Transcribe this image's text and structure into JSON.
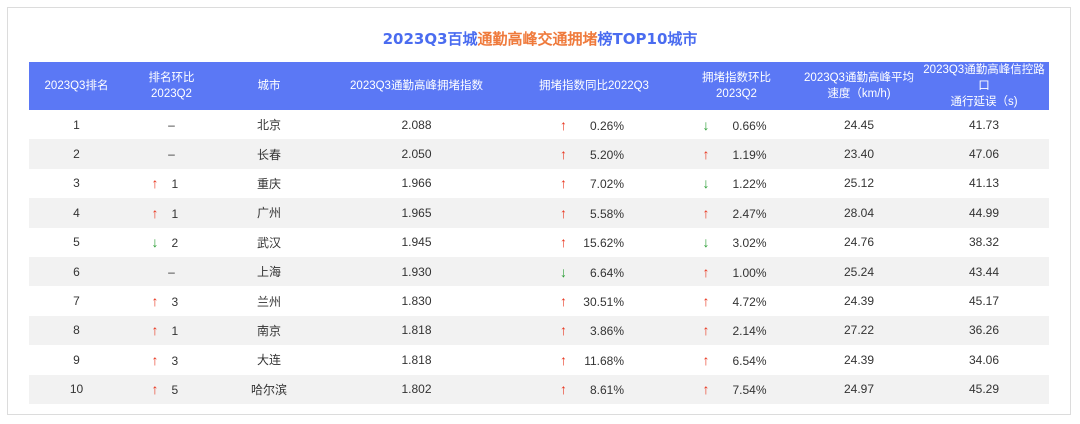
{
  "title": {
    "part1": "2023Q3百城",
    "part2": "通勤高峰交通拥堵",
    "part3": "榜TOP10城市"
  },
  "colors": {
    "header_bg": "#5b78f5",
    "title_blue": "#4a6cf0",
    "title_orange": "#ef7a3c",
    "up_arrow": "#e8341d",
    "down_arrow": "#2a9d34",
    "row_stripe": "#f2f2f2"
  },
  "chart_data": {
    "type": "table",
    "columns": [
      "2023Q3排名",
      "排名环比2023Q2",
      "城市",
      "2023Q3通勤高峰拥堵指数",
      "拥堵指数同比2022Q3",
      "拥堵指数环比2023Q2",
      "2023Q3通勤高峰平均速度（km/h)",
      "2023Q3通勤高峰信控路口通行延误（s)"
    ],
    "rows": [
      {
        "rank": "1",
        "rank_change": {
          "dir": "none",
          "text": "–"
        },
        "city": "北京",
        "index": "2.088",
        "yoy": {
          "dir": "up",
          "text": "0.26%"
        },
        "qoq": {
          "dir": "down",
          "text": "0.66%"
        },
        "speed": "24.45",
        "delay": "41.73"
      },
      {
        "rank": "2",
        "rank_change": {
          "dir": "none",
          "text": "–"
        },
        "city": "长春",
        "index": "2.050",
        "yoy": {
          "dir": "up",
          "text": "5.20%"
        },
        "qoq": {
          "dir": "up",
          "text": "1.19%"
        },
        "speed": "23.40",
        "delay": "47.06"
      },
      {
        "rank": "3",
        "rank_change": {
          "dir": "up",
          "text": "1"
        },
        "city": "重庆",
        "index": "1.966",
        "yoy": {
          "dir": "up",
          "text": "7.02%"
        },
        "qoq": {
          "dir": "down",
          "text": "1.22%"
        },
        "speed": "25.12",
        "delay": "41.13"
      },
      {
        "rank": "4",
        "rank_change": {
          "dir": "up",
          "text": "1"
        },
        "city": "广州",
        "index": "1.965",
        "yoy": {
          "dir": "up",
          "text": "5.58%"
        },
        "qoq": {
          "dir": "up",
          "text": "2.47%"
        },
        "speed": "28.04",
        "delay": "44.99"
      },
      {
        "rank": "5",
        "rank_change": {
          "dir": "down",
          "text": "2"
        },
        "city": "武汉",
        "index": "1.945",
        "yoy": {
          "dir": "up",
          "text": "15.62%"
        },
        "qoq": {
          "dir": "down",
          "text": "3.02%"
        },
        "speed": "24.76",
        "delay": "38.32"
      },
      {
        "rank": "6",
        "rank_change": {
          "dir": "none",
          "text": "–"
        },
        "city": "上海",
        "index": "1.930",
        "yoy": {
          "dir": "down",
          "text": "6.64%"
        },
        "qoq": {
          "dir": "up",
          "text": "1.00%"
        },
        "speed": "25.24",
        "delay": "43.44"
      },
      {
        "rank": "7",
        "rank_change": {
          "dir": "up",
          "text": "3"
        },
        "city": "兰州",
        "index": "1.830",
        "yoy": {
          "dir": "up",
          "text": "30.51%"
        },
        "qoq": {
          "dir": "up",
          "text": "4.72%"
        },
        "speed": "24.39",
        "delay": "45.17"
      },
      {
        "rank": "8",
        "rank_change": {
          "dir": "up",
          "text": "1"
        },
        "city": "南京",
        "index": "1.818",
        "yoy": {
          "dir": "up",
          "text": "3.86%"
        },
        "qoq": {
          "dir": "up",
          "text": "2.14%"
        },
        "speed": "27.22",
        "delay": "36.26"
      },
      {
        "rank": "9",
        "rank_change": {
          "dir": "up",
          "text": "3"
        },
        "city": "大连",
        "index": "1.818",
        "yoy": {
          "dir": "up",
          "text": "11.68%"
        },
        "qoq": {
          "dir": "up",
          "text": "6.54%"
        },
        "speed": "24.39",
        "delay": "34.06"
      },
      {
        "rank": "10",
        "rank_change": {
          "dir": "up",
          "text": "5"
        },
        "city": "哈尔滨",
        "index": "1.802",
        "yoy": {
          "dir": "up",
          "text": "8.61%"
        },
        "qoq": {
          "dir": "up",
          "text": "7.54%"
        },
        "speed": "24.97",
        "delay": "45.29"
      }
    ]
  }
}
